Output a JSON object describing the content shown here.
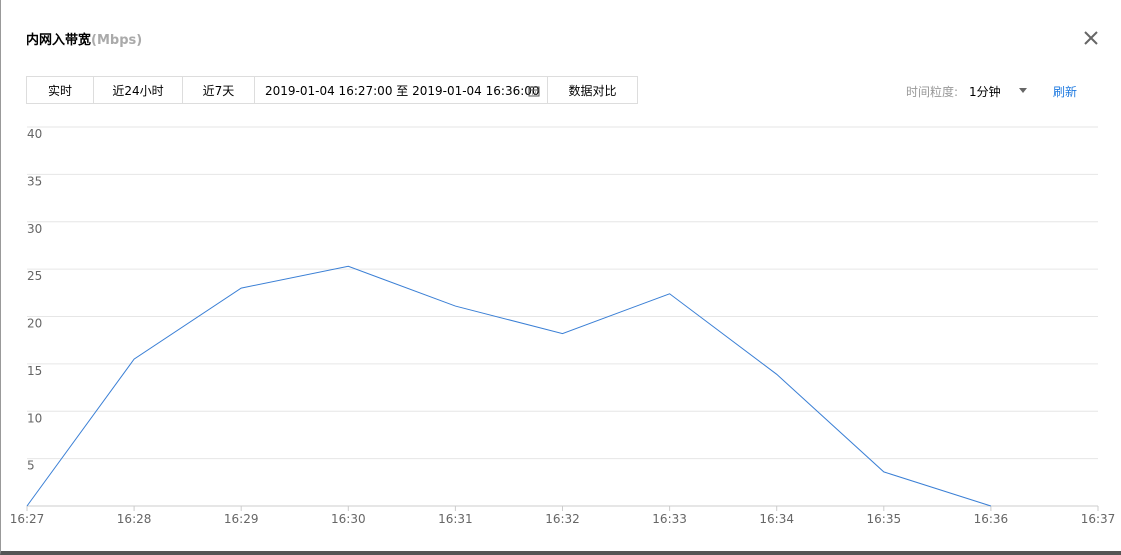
{
  "header": {
    "title": "内网入带宽",
    "unit": "(Mbps)"
  },
  "toolbar": {
    "buttons": [
      "实时",
      "近24小时",
      "近7天"
    ],
    "date_range": "2019-01-04 16:27:00 至 2019-01-04 16:36:00",
    "compare": "数据对比",
    "granularity_label": "时间粒度:",
    "granularity": "1分钟",
    "refresh": "刷新"
  },
  "chart_data": {
    "type": "line",
    "categories": [
      "16:27",
      "16:28",
      "16:29",
      "16:30",
      "16:31",
      "16:32",
      "16:33",
      "16:34",
      "16:35",
      "16:36",
      "16:37"
    ],
    "series": [
      {
        "color": "#3a7fd5",
        "values": [
          0,
          15.5,
          23.0,
          25.3,
          21.1,
          18.2,
          22.4,
          13.9,
          3.6,
          0,
          null
        ]
      }
    ],
    "ylim": [
      0,
      40
    ],
    "yticks": [
      5,
      10,
      15,
      20,
      25,
      30,
      35,
      40
    ],
    "grid": true
  }
}
